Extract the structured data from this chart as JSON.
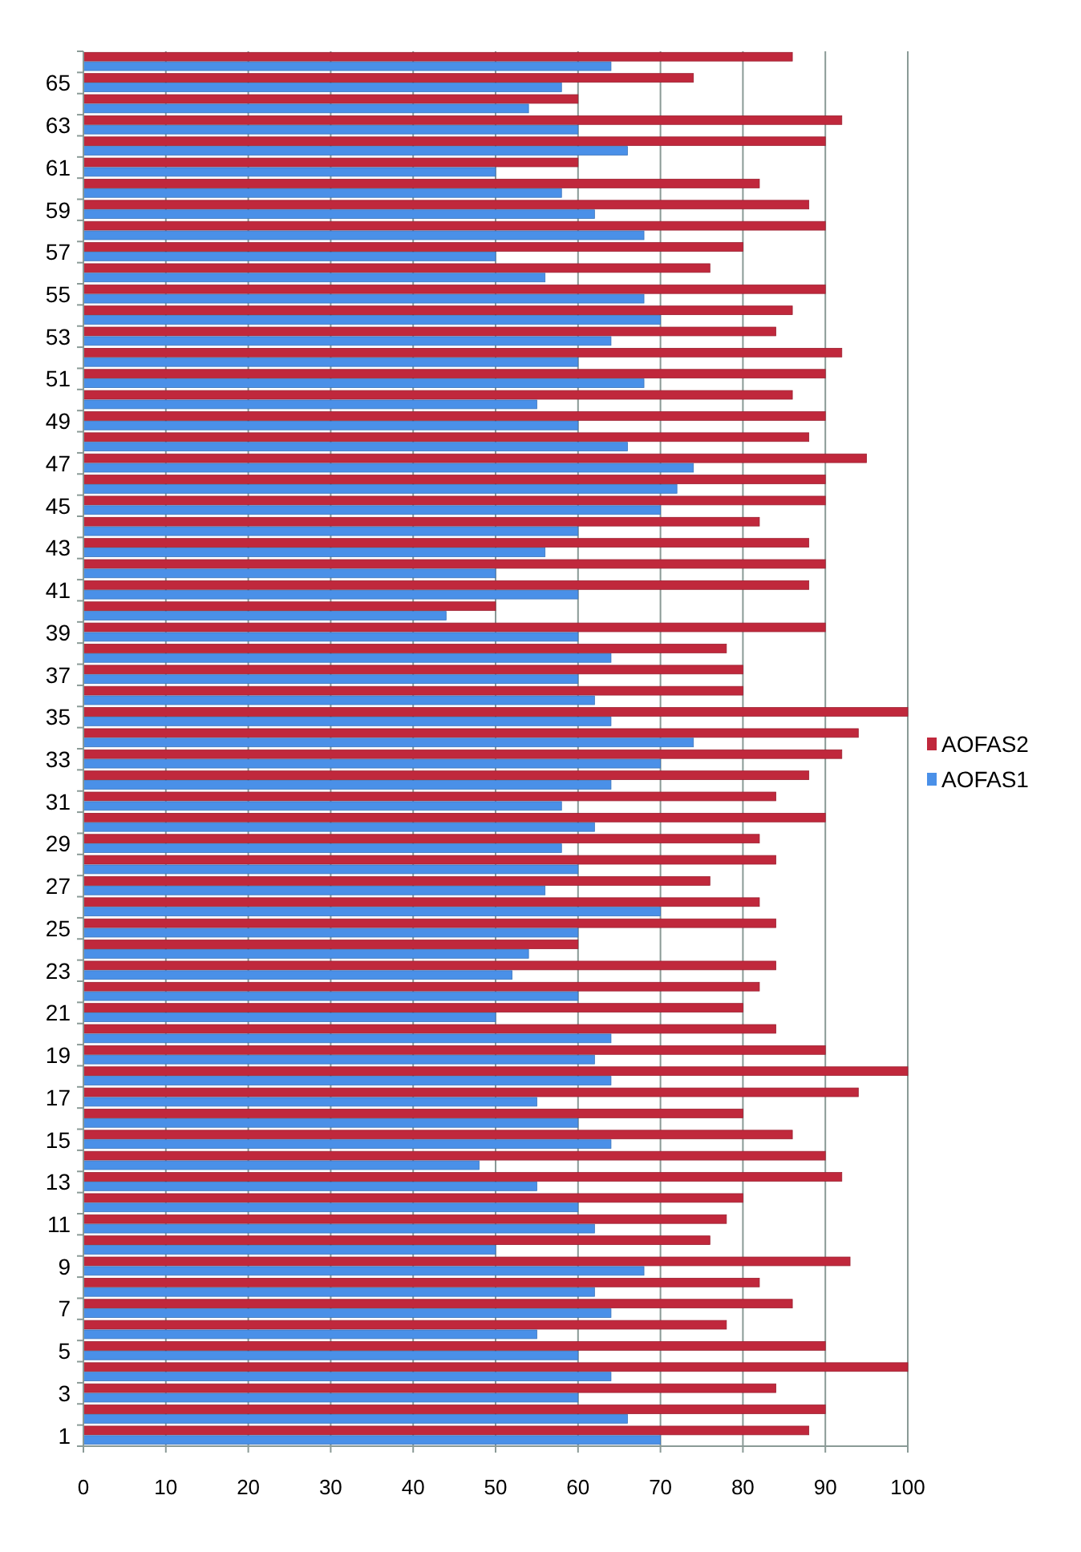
{
  "chart_data": {
    "type": "bar",
    "orientation": "horizontal",
    "categories": [
      null,
      "65",
      null,
      "63",
      null,
      "61",
      null,
      "59",
      null,
      "57",
      null,
      "55",
      null,
      "53",
      null,
      "51",
      null,
      "49",
      null,
      "47",
      null,
      "45",
      null,
      "43",
      null,
      "41",
      null,
      "39",
      null,
      "37",
      null,
      "35",
      null,
      "33",
      null,
      "31",
      null,
      "29",
      null,
      "27",
      null,
      "25",
      null,
      "23",
      null,
      "21",
      null,
      "19",
      null,
      "17",
      null,
      "15",
      null,
      "13",
      null,
      "11",
      null,
      "9",
      null,
      "7",
      null,
      "5",
      null,
      "3",
      null,
      "1"
    ],
    "series": [
      {
        "name": "AOFAS2",
        "color": "#c0283c",
        "values": [
          86,
          74,
          60,
          92,
          90,
          60,
          82,
          88,
          90,
          80,
          76,
          90,
          86,
          84,
          92,
          90,
          86,
          90,
          88,
          95,
          90,
          90,
          82,
          88,
          90,
          88,
          50,
          90,
          78,
          80,
          80,
          100,
          94,
          92,
          88,
          84,
          90,
          82,
          84,
          76,
          82,
          84,
          60,
          84,
          82,
          80,
          84,
          90,
          100,
          94,
          80,
          86,
          90,
          92,
          80,
          78,
          76,
          93,
          82,
          86,
          78,
          90,
          100,
          84,
          90,
          88
        ]
      },
      {
        "name": "AOFAS1",
        "color": "#4a90e8",
        "values": [
          64,
          58,
          54,
          60,
          66,
          50,
          58,
          62,
          68,
          50,
          56,
          68,
          70,
          64,
          60,
          68,
          55,
          60,
          66,
          74,
          72,
          70,
          60,
          56,
          50,
          60,
          44,
          60,
          64,
          60,
          62,
          64,
          74,
          70,
          64,
          58,
          62,
          58,
          60,
          56,
          70,
          60,
          54,
          52,
          60,
          50,
          64,
          62,
          64,
          55,
          60,
          64,
          48,
          55,
          60,
          62,
          50,
          68,
          62,
          64,
          55,
          60,
          64,
          60,
          66,
          70
        ]
      }
    ],
    "xlim": [
      0,
      100
    ],
    "xticks": [
      0,
      10,
      20,
      30,
      40,
      50,
      60,
      70,
      80,
      90,
      100
    ],
    "grid": "x",
    "legend": "right"
  }
}
